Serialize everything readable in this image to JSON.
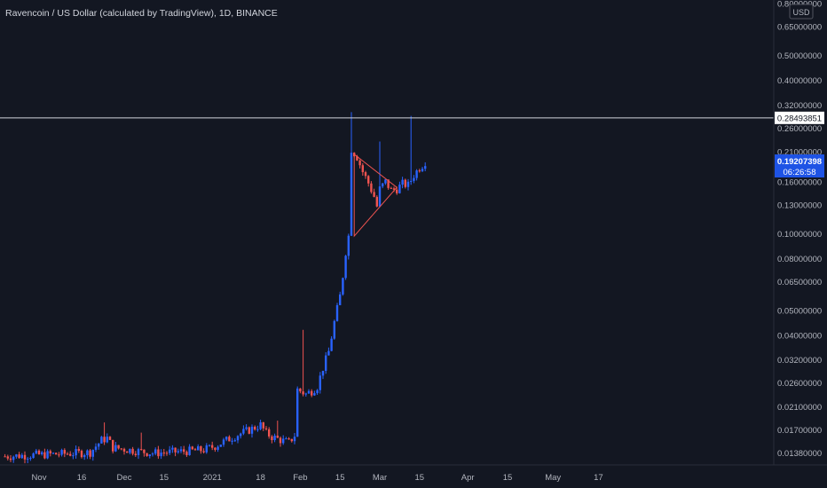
{
  "chart_data": {
    "type": "candlestick",
    "title": "Ravencoin / US Dollar (calculated by TradingView), 1D, BINANCE",
    "currency_label": "USD",
    "y_scale": "log",
    "ylim": [
      0.0126,
      0.8
    ],
    "y_ticks": [
      "0.80000000",
      "0.65000000",
      "0.50000000",
      "0.40000000",
      "0.32000000",
      "0.26000000",
      "0.21000000",
      "0.16000000",
      "0.13000000",
      "0.10000000",
      "0.08000000",
      "0.06500000",
      "0.05000000",
      "0.04000000",
      "0.03200000",
      "0.02600000",
      "0.02100000",
      "0.01700000",
      "0.01380000"
    ],
    "y_tick_values": [
      0.8,
      0.65,
      0.5,
      0.4,
      0.32,
      0.26,
      0.21,
      0.16,
      0.13,
      0.1,
      0.08,
      0.065,
      0.05,
      0.04,
      0.032,
      0.026,
      0.021,
      0.017,
      0.0138
    ],
    "x_ticks": [
      {
        "label": "Nov",
        "day": 0
      },
      {
        "label": "16",
        "day": 15
      },
      {
        "label": "Dec",
        "day": 30
      },
      {
        "label": "15",
        "day": 44
      },
      {
        "label": "2021",
        "day": 61
      },
      {
        "label": "18",
        "day": 78
      },
      {
        "label": "Feb",
        "day": 92
      },
      {
        "label": "15",
        "day": 106
      },
      {
        "label": "Mar",
        "day": 120
      },
      {
        "label": "15",
        "day": 134
      },
      {
        "label": "Apr",
        "day": 151
      },
      {
        "label": "15",
        "day": 165
      },
      {
        "label": "May",
        "day": 181
      },
      {
        "label": "17",
        "day": 197
      }
    ],
    "horizontal_line": {
      "value": 0.28493851,
      "label": "0.28493851"
    },
    "last_price": {
      "value": 0.19207398,
      "label": "0.19207398",
      "countdown": "06:26:58"
    },
    "triangle": [
      [
        111,
        0.205
      ],
      [
        126,
        0.152
      ],
      [
        111,
        0.098
      ]
    ],
    "colors": {
      "up": "#2962ff",
      "down": "#ef5350",
      "hline": "#d1d4dc",
      "triangle": "#ef5350",
      "price_tag": "#1e53e5"
    },
    "anchors": [
      [
        -12,
        0.0134
      ],
      [
        0,
        0.0136
      ],
      [
        8,
        0.0137
      ],
      [
        18,
        0.0139
      ],
      [
        22,
        0.0155
      ],
      [
        24,
        0.0158
      ],
      [
        26,
        0.0145
      ],
      [
        30,
        0.0143
      ],
      [
        40,
        0.0138
      ],
      [
        50,
        0.014
      ],
      [
        58,
        0.0142
      ],
      [
        62,
        0.0147
      ],
      [
        66,
        0.0155
      ],
      [
        70,
        0.0163
      ],
      [
        74,
        0.017
      ],
      [
        78,
        0.0178
      ],
      [
        80,
        0.0165
      ],
      [
        82,
        0.016
      ],
      [
        86,
        0.0154
      ],
      [
        88,
        0.0152
      ],
      [
        90,
        0.0162
      ],
      [
        91,
        0.0245
      ],
      [
        94,
        0.0235
      ],
      [
        96,
        0.0242
      ],
      [
        98,
        0.0252
      ],
      [
        100,
        0.0298
      ],
      [
        102,
        0.0345
      ],
      [
        104,
        0.045
      ],
      [
        106,
        0.057
      ],
      [
        107,
        0.0685
      ],
      [
        108,
        0.085
      ],
      [
        109,
        0.098
      ],
      [
        110,
        0.215
      ],
      [
        112,
        0.2
      ],
      [
        114,
        0.175
      ],
      [
        116,
        0.158
      ],
      [
        118,
        0.14
      ],
      [
        119,
        0.128
      ],
      [
        120,
        0.15
      ],
      [
        122,
        0.16
      ],
      [
        124,
        0.148
      ],
      [
        126,
        0.15
      ],
      [
        128,
        0.157
      ],
      [
        130,
        0.155
      ],
      [
        132,
        0.17
      ],
      [
        134,
        0.182
      ],
      [
        135,
        0.186
      ],
      [
        136,
        0.192
      ]
    ],
    "spikes": [
      [
        23,
        0.0182
      ],
      [
        36,
        0.0166
      ],
      [
        84,
        0.0185
      ],
      [
        93,
        0.042
      ],
      [
        110,
        0.3
      ],
      [
        131,
        0.29
      ],
      [
        120,
        0.23
      ]
    ]
  }
}
